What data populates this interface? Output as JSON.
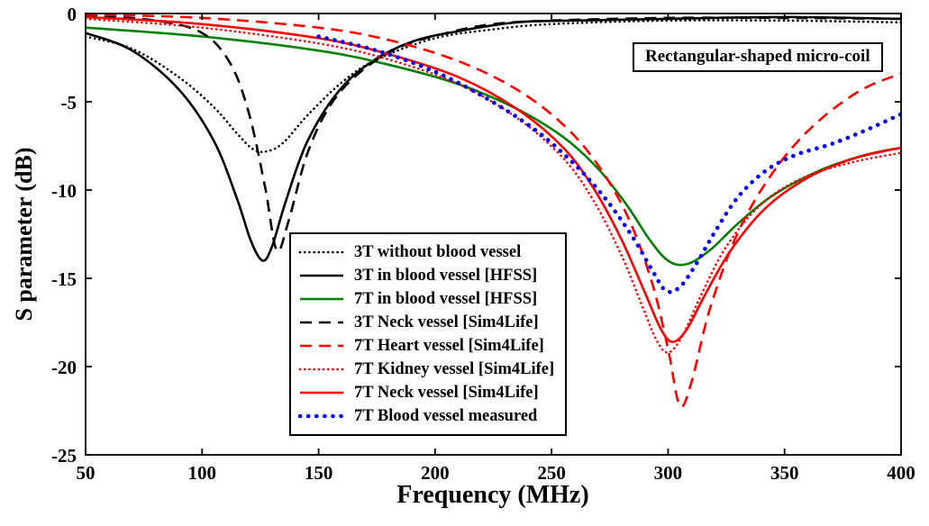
{
  "chart_data": {
    "type": "line",
    "title": "",
    "xlabel": "Frequency (MHz)",
    "ylabel": "S parameter (dB)",
    "annotation": "Rectangular-shaped micro-coil",
    "xlim": [
      50,
      400
    ],
    "ylim": [
      -25,
      0
    ],
    "xticks": [
      50,
      100,
      150,
      200,
      250,
      300,
      350,
      400
    ],
    "yticks": [
      0,
      -5,
      -10,
      -15,
      -20,
      -25
    ],
    "grid": false,
    "legend_position": "center-left-bottom",
    "axis_color": "#000000",
    "series": [
      {
        "name": "3T without blood vessel",
        "color": "#000000",
        "dash": "dotted",
        "width": 2.6,
        "x": [
          50,
          70,
          90,
          105,
          115,
          122,
          128,
          135,
          145,
          160,
          175,
          200,
          225,
          250,
          300,
          350,
          400
        ],
        "y": [
          -1.3,
          -2.0,
          -3.6,
          -5.3,
          -6.8,
          -7.7,
          -7.8,
          -7.3,
          -5.8,
          -3.9,
          -2.6,
          -1.4,
          -0.9,
          -0.6,
          -0.4,
          -0.4,
          -0.5
        ]
      },
      {
        "name": "3T in blood vessel [HFSS]",
        "color": "#000000",
        "dash": "solid",
        "width": 2.6,
        "x": [
          50,
          70,
          90,
          105,
          115,
          121,
          126,
          130,
          136,
          145,
          158,
          172,
          190,
          210,
          235,
          260,
          300,
          350,
          400
        ],
        "y": [
          -1.1,
          -2.1,
          -4.3,
          -7.2,
          -10.5,
          -12.9,
          -14.0,
          -13.2,
          -10.6,
          -7.3,
          -4.5,
          -2.8,
          -1.6,
          -1.0,
          -0.5,
          -0.4,
          -0.3,
          -0.2,
          -0.3
        ]
      },
      {
        "name": "7T in blood vessel [HFSS]",
        "color": "#008000",
        "dash": "solid",
        "width": 2.6,
        "x": [
          50,
          100,
          150,
          180,
          210,
          235,
          255,
          270,
          282,
          292,
          300,
          308,
          318,
          330,
          345,
          365,
          385,
          400
        ],
        "y": [
          -0.8,
          -1.3,
          -2.1,
          -2.9,
          -4.0,
          -5.4,
          -7.0,
          -8.8,
          -10.8,
          -12.8,
          -14.0,
          -14.2,
          -13.4,
          -11.9,
          -10.3,
          -8.9,
          -8.0,
          -7.6
        ]
      },
      {
        "name": "3T Neck vessel [Sim4Life]",
        "color": "#000000",
        "dash": "dashed",
        "width": 2.6,
        "x": [
          50,
          80,
          100,
          112,
          120,
          127,
          132,
          137,
          145,
          155,
          168,
          185,
          205,
          225,
          250,
          300,
          350,
          400
        ],
        "y": [
          -0.1,
          -0.4,
          -1.1,
          -2.8,
          -5.6,
          -9.8,
          -13.4,
          -11.8,
          -8.0,
          -5.2,
          -3.3,
          -1.9,
          -1.1,
          -0.6,
          -0.4,
          -0.25,
          -0.25,
          -0.3
        ]
      },
      {
        "name": "7T Heart vessel [Sim4Life]",
        "color": "#ff0000",
        "dash": "dashed",
        "width": 2.6,
        "x": [
          50,
          100,
          150,
          180,
          210,
          235,
          255,
          270,
          283,
          293,
          300,
          305,
          310,
          318,
          330,
          345,
          362,
          382,
          400
        ],
        "y": [
          -0.05,
          -0.25,
          -0.8,
          -1.5,
          -2.7,
          -4.3,
          -6.3,
          -8.6,
          -11.6,
          -15.2,
          -19.0,
          -22.2,
          -20.9,
          -16.7,
          -12.4,
          -9.0,
          -6.4,
          -4.4,
          -3.4
        ]
      },
      {
        "name": "7T Kidney vessel [Sim4Life]",
        "color": "#ff0000",
        "dash": "dotted",
        "width": 2.6,
        "x": [
          50,
          100,
          150,
          180,
          210,
          235,
          255,
          268,
          280,
          289,
          295,
          300,
          306,
          314,
          325,
          340,
          358,
          380,
          400
        ],
        "y": [
          -0.3,
          -0.8,
          -1.7,
          -2.6,
          -4.0,
          -5.9,
          -8.2,
          -10.6,
          -13.7,
          -16.6,
          -18.5,
          -19.2,
          -18.3,
          -16.0,
          -13.2,
          -10.8,
          -9.3,
          -8.4,
          -7.9
        ]
      },
      {
        "name": "7T Neck vessel [Sim4Life]",
        "color": "#ff0000",
        "dash": "solid",
        "width": 2.6,
        "x": [
          50,
          100,
          150,
          180,
          210,
          235,
          255,
          268,
          280,
          290,
          297,
          302,
          308,
          316,
          327,
          342,
          360,
          380,
          400
        ],
        "y": [
          -0.2,
          -0.6,
          -1.4,
          -2.3,
          -3.6,
          -5.4,
          -7.6,
          -9.9,
          -12.8,
          -15.8,
          -17.9,
          -18.6,
          -17.9,
          -15.9,
          -13.4,
          -11.0,
          -9.3,
          -8.2,
          -7.6
        ]
      },
      {
        "name": "7T Blood vessel measured",
        "color": "#0000ff",
        "dash": "dotted",
        "width": 4.6,
        "x": [
          150,
          175,
          200,
          222,
          242,
          258,
          272,
          284,
          293,
          299,
          305,
          312,
          320,
          330,
          342,
          355,
          370,
          385,
          400
        ],
        "y": [
          -1.3,
          -2.1,
          -3.3,
          -4.8,
          -6.5,
          -8.3,
          -10.3,
          -12.5,
          -14.5,
          -15.7,
          -15.5,
          -14.2,
          -12.4,
          -10.4,
          -8.9,
          -8.0,
          -7.4,
          -6.6,
          -5.7
        ]
      }
    ]
  }
}
